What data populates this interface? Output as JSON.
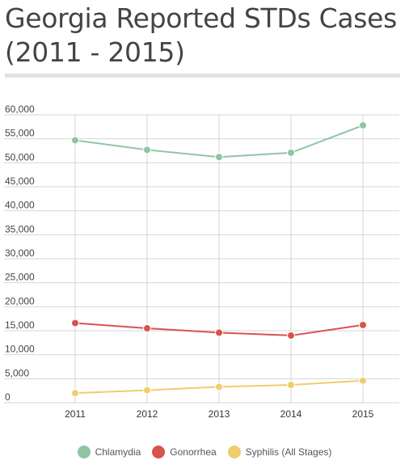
{
  "title": "Georgia Reported STDs Cases (2011 - 2015)",
  "chart_data": {
    "type": "line",
    "x": [
      "2011",
      "2012",
      "2013",
      "2014",
      "2015"
    ],
    "series": [
      {
        "name": "Chlamydia",
        "color": "#8fc5a3",
        "values": [
          54700,
          52700,
          51200,
          52100,
          57800
        ]
      },
      {
        "name": "Gonorrhea",
        "color": "#d9534f",
        "values": [
          16600,
          15500,
          14600,
          14000,
          16200
        ]
      },
      {
        "name": "Syphilis (All Stages)",
        "color": "#f0cc6e",
        "values": [
          2000,
          2600,
          3300,
          3700,
          4600
        ]
      }
    ],
    "ylim": [
      0,
      60000
    ],
    "yticks": [
      0,
      5000,
      10000,
      15000,
      20000,
      25000,
      30000,
      35000,
      40000,
      45000,
      50000,
      55000,
      60000
    ],
    "ytick_labels": [
      "0",
      "5,000",
      "10,000",
      "15,000",
      "20,000",
      "25,000",
      "30,000",
      "35,000",
      "40,000",
      "45,000",
      "50,000",
      "55,000",
      "60,000"
    ],
    "grid": true,
    "legend_position": "bottom-center"
  }
}
